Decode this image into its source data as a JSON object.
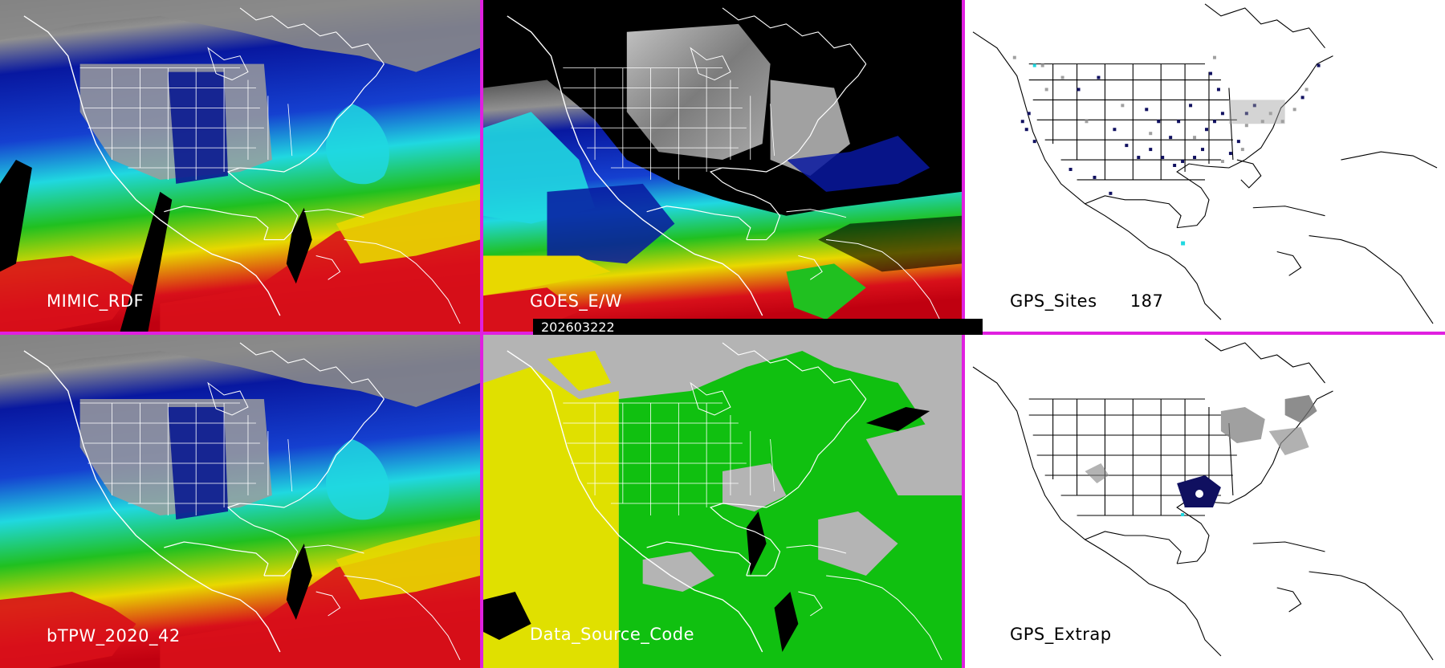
{
  "panels": {
    "mimic": {
      "label": "MIMIC_RDF"
    },
    "goes": {
      "label": "GOES_E/W"
    },
    "gps_sites": {
      "label": "GPS_Sites",
      "count": "187"
    },
    "btpw": {
      "label": "bTPW_2020_42"
    },
    "data_source": {
      "label": "Data_Source_Code"
    },
    "gps_extrap": {
      "label": "GPS_Extrap"
    }
  },
  "timestamp": "202603222",
  "colors": {
    "divider": "#e020e0",
    "moist_red": "#d8101a",
    "moist_yellow": "#e8d800",
    "moist_green": "#20c020",
    "moist_cyan": "#20d8e0",
    "moist_blue": "#0818a0",
    "source_yellow": "#e0e000",
    "source_green": "#10c010",
    "source_gray": "#b4b4b4",
    "gps_navy": "#101060"
  }
}
